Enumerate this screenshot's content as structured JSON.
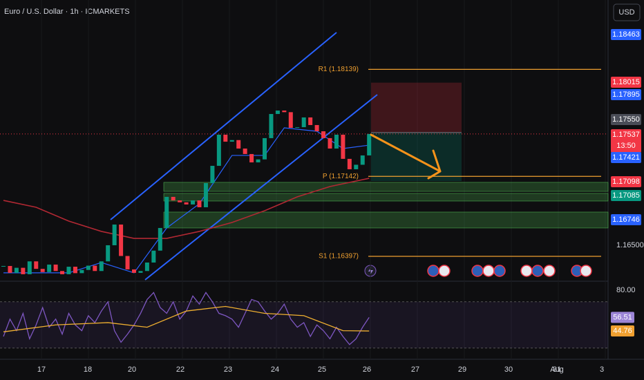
{
  "chart_data": {
    "type": "candlestick",
    "title": "Euro / U.S. Dollar · 1h · ICMARKETS",
    "currency": "USD",
    "up_color": "#089981",
    "down_color": "#f23645",
    "values": [
      1.16307,
      1.16243,
      1.1629,
      1.1623,
      1.1635,
      1.1628,
      1.1625,
      1.1632,
      1.1626,
      1.1623,
      1.163,
      1.1624,
      1.1627,
      1.1631,
      1.1626,
      1.1635,
      1.165,
      1.16693,
      1.164,
      1.16275,
      1.16243,
      1.1626,
      1.16339,
      1.1645,
      1.16661,
      1.16951,
      1.16918,
      1.169,
      1.1688,
      1.16918,
      1.16854,
      1.17079,
      1.1724,
      1.1753,
      1.17465,
      1.1748,
      1.17401,
      1.1735,
      1.17272,
      1.173,
      1.17498,
      1.17723,
      1.17755,
      1.1774,
      1.17594,
      1.176,
      1.17691,
      1.1762,
      1.17562,
      1.17498,
      1.17401,
      1.1753,
      1.17305,
      1.17208,
      1.1725,
      1.17337,
      1.17537
    ],
    "overlays": [
      {
        "color": "#b22833",
        "x": [
          0,
          5,
          10,
          15,
          20,
          25,
          30,
          35,
          40,
          45,
          50,
          56
        ],
        "values": [
          1.16918,
          1.16854,
          1.16725,
          1.16629,
          1.16564,
          1.16564,
          1.16629,
          1.16712,
          1.16822,
          1.16951,
          1.17047,
          1.17124
        ]
      },
      {
        "color": "#2962ff",
        "x": [
          0,
          10,
          15,
          20,
          25,
          30,
          35,
          40,
          43,
          48,
          52,
          56
        ],
        "values": [
          1.16243,
          1.16243,
          1.16339,
          1.16243,
          1.16661,
          1.16886,
          1.17337,
          1.17337,
          1.17594,
          1.17562,
          1.17401,
          1.17433
        ]
      }
    ],
    "ylim": [
      1.16178,
      1.18785
    ],
    "yticks": [
      {
        "value": 1.165,
        "label": "1.16500"
      }
    ],
    "price_labels": [
      {
        "value": 1.18463,
        "label": "1.18463",
        "color": "#2962ff"
      },
      {
        "value": 1.18015,
        "label": "1.18015",
        "color": "#f23645"
      },
      {
        "value": 1.17895,
        "label": "1.17895",
        "color": "#2962ff"
      },
      {
        "value": 1.1755,
        "label": "1.17550",
        "color": "#4a4d57"
      },
      {
        "value": 1.17537,
        "label": "1.17537",
        "color": "#f23645"
      },
      {
        "value": 1.17421,
        "label": "1.17421",
        "color": "#2962ff"
      },
      {
        "value": 1.17098,
        "label": "1.17098",
        "color": "#f23645"
      },
      {
        "value": 1.17085,
        "label": "1.17085",
        "color": "#089981"
      },
      {
        "value": 1.16746,
        "label": "1.16746",
        "color": "#2962ff"
      }
    ],
    "countdown": "13:50",
    "levels": [
      {
        "label": "R1 (1.18139)",
        "value": 1.18139
      },
      {
        "label": "P (1.17142)",
        "value": 1.17142
      },
      {
        "label": "S1 (1.16397)",
        "value": 1.16397
      }
    ],
    "position": {
      "stop": 1.18015,
      "entry": 1.1755,
      "target": 1.17098
    },
    "zones": [
      [
        1.17086,
        1.17002
      ],
      [
        1.16983,
        1.16912
      ],
      [
        1.16809,
        1.16661
      ]
    ],
    "x_labels": [
      "17",
      "18",
      "20",
      "22",
      "23",
      "24",
      "25",
      "26",
      "27",
      "29",
      "30",
      "31",
      "Aug",
      "3"
    ],
    "rsi": {
      "color": "#7e57c2",
      "ma_color": "#f0b030",
      "values": [
        40,
        55,
        45,
        60,
        38,
        50,
        65,
        48,
        55,
        42,
        60,
        50,
        45,
        58,
        52,
        62,
        70,
        45,
        35,
        42,
        50,
        60,
        72,
        78,
        65,
        60,
        70,
        55,
        62,
        75,
        68,
        78,
        70,
        60,
        58,
        55,
        48,
        60,
        72,
        70,
        62,
        55,
        60,
        68,
        55,
        48,
        52,
        40,
        50,
        45,
        38,
        48,
        40,
        33,
        38,
        48,
        56.51
      ],
      "ma": {
        "x": [
          0,
          8,
          16,
          22,
          28,
          34,
          40,
          46,
          52,
          56
        ],
        "values": [
          44,
          50,
          52,
          48,
          62,
          66,
          60,
          58,
          45,
          44.76
        ]
      },
      "ylim": [
        20.3,
        86
      ],
      "yticks": [
        {
          "value": 80,
          "label": "80.00"
        }
      ],
      "bands": [
        70,
        30
      ],
      "labels": [
        {
          "value": 56.51,
          "label": "56.51",
          "color": "#9c85d6"
        },
        {
          "value": 44.76,
          "label": "44.76",
          "color": "#f0a030"
        }
      ]
    }
  }
}
